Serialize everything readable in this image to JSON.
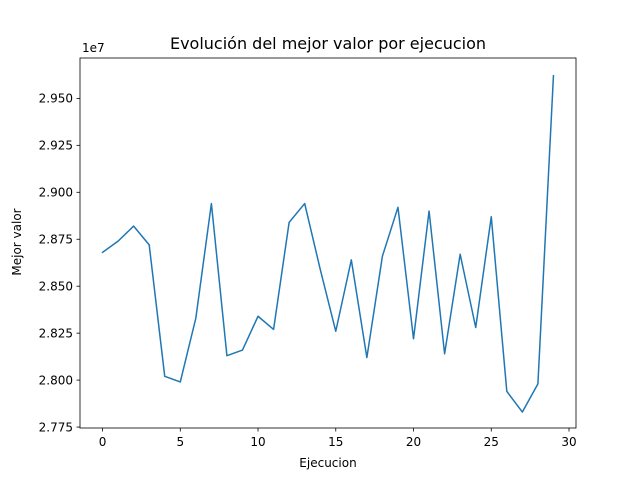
{
  "chart_data": {
    "type": "line",
    "title": "Evolución del mejor valor por ejecucion",
    "xlabel": "Ejecucion",
    "ylabel": "Mejor valor",
    "y_offset_label": "1e7",
    "xlim": [
      -1.45,
      30.45
    ],
    "ylim": [
      27.745,
      29.715
    ],
    "x_ticks": [
      0,
      5,
      10,
      15,
      20,
      25,
      30
    ],
    "x_tick_labels": [
      "0",
      "5",
      "10",
      "15",
      "20",
      "25",
      "30"
    ],
    "y_ticks": [
      27.75,
      28.0,
      28.25,
      28.5,
      28.75,
      29.0,
      29.25,
      29.5
    ],
    "y_tick_labels": [
      "2.775",
      "2.800",
      "2.825",
      "2.850",
      "2.875",
      "2.900",
      "2.925",
      "2.950"
    ],
    "grid": false,
    "series": [
      {
        "color": "#1f77b4",
        "x": [
          0,
          1,
          2,
          3,
          4,
          5,
          6,
          7,
          8,
          9,
          10,
          11,
          12,
          13,
          14,
          15,
          16,
          17,
          18,
          19,
          20,
          21,
          22,
          23,
          24,
          25,
          26,
          27,
          28,
          29
        ],
        "values": [
          28.68,
          28.74,
          28.82,
          28.72,
          28.02,
          27.99,
          28.33,
          28.94,
          28.13,
          28.16,
          28.34,
          28.27,
          28.84,
          28.94,
          28.59,
          28.26,
          28.64,
          28.12,
          28.66,
          28.92,
          28.22,
          28.9,
          28.14,
          28.67,
          28.28,
          28.87,
          27.94,
          27.83,
          27.98,
          29.62
        ]
      }
    ]
  }
}
